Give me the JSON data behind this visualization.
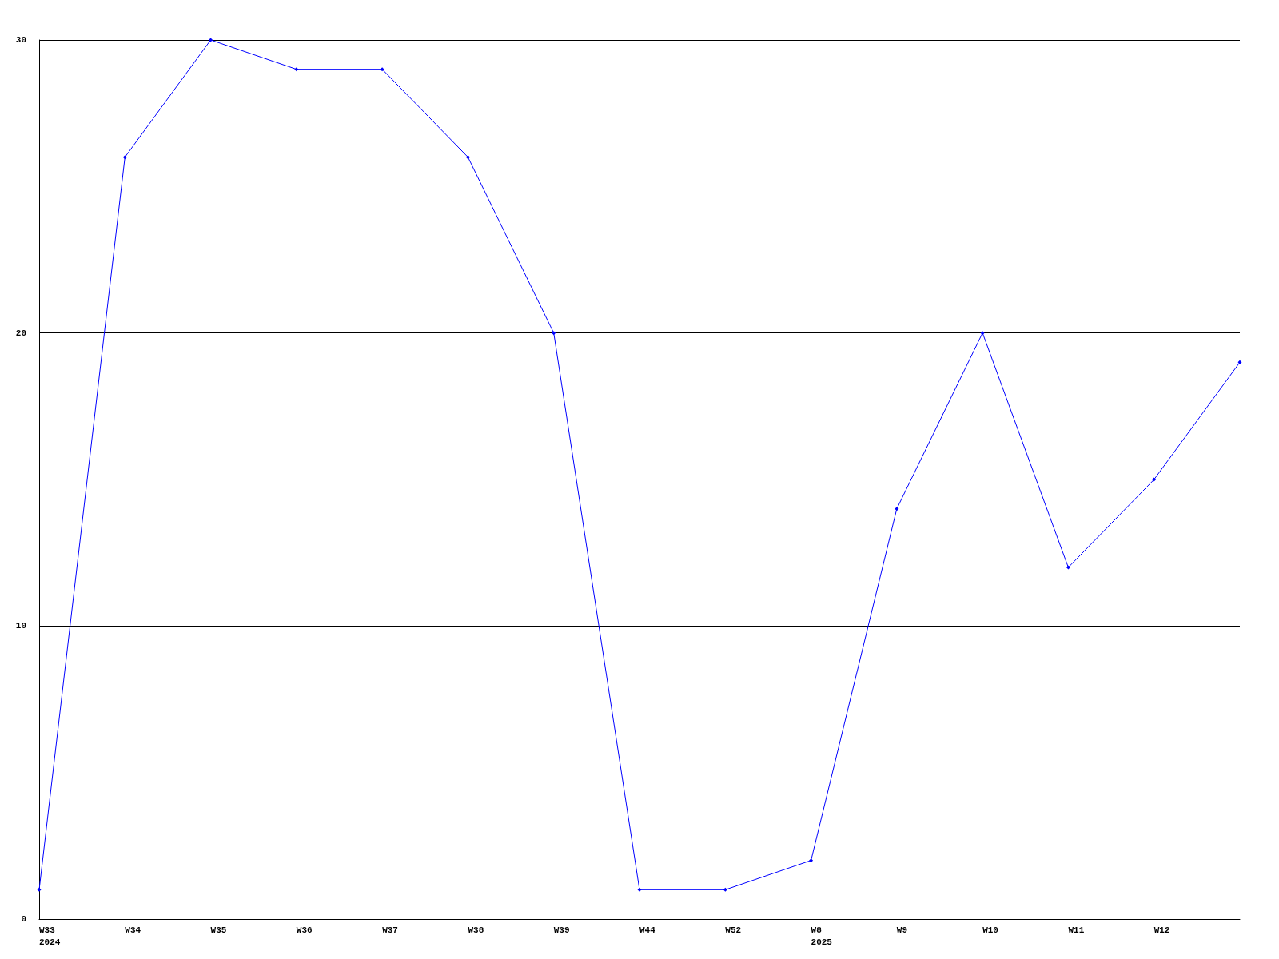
{
  "chart_data": {
    "type": "line",
    "categories": [
      "W33\n2024",
      "W34",
      "W35",
      "W36",
      "W37",
      "W38",
      "W39",
      "W44",
      "W52",
      "W8\n2025",
      "W9",
      "W10",
      "W11",
      "W12",
      null
    ],
    "series": [
      {
        "color": "#0000ff",
        "values": [
          1,
          26,
          30,
          29,
          29,
          26,
          20,
          1,
          1,
          2,
          14,
          20,
          12,
          15,
          19
        ]
      }
    ],
    "ylim": [
      0,
      30
    ],
    "yticks": [
      0,
      10,
      20,
      30
    ],
    "grid": "y",
    "marker": "diamond",
    "line_style": "solid"
  }
}
